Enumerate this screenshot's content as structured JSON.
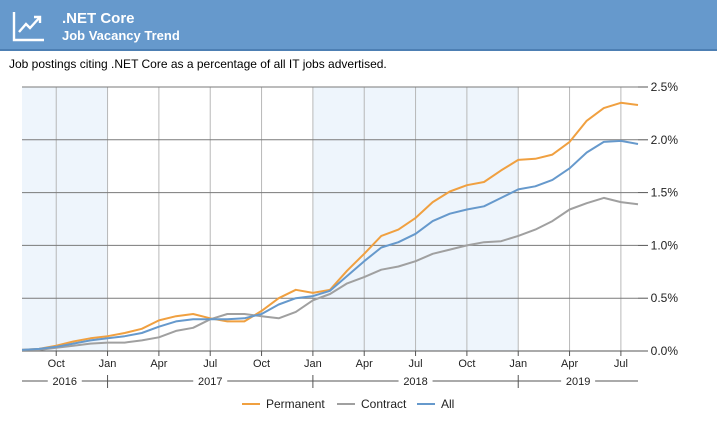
{
  "header": {
    "title": ".NET Core",
    "subtitle": "Job Vacancy Trend",
    "icon": "trend-chart-icon",
    "background_color": "#6699cc"
  },
  "description": "Job postings citing .NET Core as a percentage of all IT jobs advertised.",
  "chart_data": {
    "type": "line",
    "title": "",
    "xlabel": "",
    "ylabel": "",
    "x_axis": {
      "start": "2016-08",
      "end": "2019-08",
      "month_ticks": [
        "Oct",
        "Jan",
        "Apr",
        "Jul",
        "Oct",
        "Jan",
        "Apr",
        "Jul",
        "Oct",
        "Jan",
        "Apr",
        "Jul"
      ],
      "month_tick_dates": [
        "2016-10",
        "2017-01",
        "2017-04",
        "2017-07",
        "2017-10",
        "2018-01",
        "2018-04",
        "2018-07",
        "2018-10",
        "2019-01",
        "2019-04",
        "2019-07"
      ],
      "year_labels": [
        "2016",
        "2017",
        "2018",
        "2019"
      ]
    },
    "y_axis": {
      "ylim": [
        0,
        2.5
      ],
      "ticks": [
        0,
        0.5,
        1.0,
        1.5,
        2.0,
        2.5
      ],
      "tick_labels": [
        "0.0%",
        "0.5%",
        "1.0%",
        "1.5%",
        "2.0%",
        "2.5%"
      ],
      "position": "right"
    },
    "grid": true,
    "shaded_years": [
      "2016",
      "2018"
    ],
    "shade_color": "#eef5fc",
    "legend_position": "bottom-center",
    "x": [
      "2016-08",
      "2016-09",
      "2016-10",
      "2016-11",
      "2016-12",
      "2017-01",
      "2017-02",
      "2017-03",
      "2017-04",
      "2017-05",
      "2017-06",
      "2017-07",
      "2017-08",
      "2017-09",
      "2017-10",
      "2017-11",
      "2017-12",
      "2018-01",
      "2018-02",
      "2018-03",
      "2018-04",
      "2018-05",
      "2018-06",
      "2018-07",
      "2018-08",
      "2018-09",
      "2018-10",
      "2018-11",
      "2018-12",
      "2019-01",
      "2019-02",
      "2019-03",
      "2019-04",
      "2019-05",
      "2019-06",
      "2019-07",
      "2019-08"
    ],
    "series": [
      {
        "name": "Permanent",
        "color": "#f0a040",
        "values": [
          0.01,
          0.02,
          0.05,
          0.09,
          0.12,
          0.14,
          0.17,
          0.21,
          0.29,
          0.33,
          0.35,
          0.31,
          0.28,
          0.28,
          0.38,
          0.5,
          0.58,
          0.55,
          0.58,
          0.76,
          0.92,
          1.09,
          1.15,
          1.26,
          1.41,
          1.51,
          1.57,
          1.6,
          1.71,
          1.81,
          1.82,
          1.86,
          1.98,
          2.18,
          2.3,
          2.35,
          2.33
        ]
      },
      {
        "name": "Contract",
        "color": "#a0a0a0",
        "values": [
          0.01,
          0.01,
          0.03,
          0.05,
          0.07,
          0.08,
          0.08,
          0.1,
          0.13,
          0.19,
          0.22,
          0.3,
          0.35,
          0.35,
          0.33,
          0.31,
          0.37,
          0.48,
          0.54,
          0.64,
          0.7,
          0.77,
          0.8,
          0.85,
          0.92,
          0.96,
          1.0,
          1.03,
          1.04,
          1.09,
          1.15,
          1.23,
          1.34,
          1.4,
          1.45,
          1.41,
          1.39
        ]
      },
      {
        "name": "All",
        "color": "#6699cc",
        "values": [
          0.01,
          0.02,
          0.04,
          0.07,
          0.1,
          0.12,
          0.14,
          0.17,
          0.23,
          0.28,
          0.3,
          0.3,
          0.3,
          0.31,
          0.35,
          0.44,
          0.5,
          0.52,
          0.57,
          0.71,
          0.85,
          0.98,
          1.03,
          1.11,
          1.23,
          1.3,
          1.34,
          1.37,
          1.45,
          1.53,
          1.56,
          1.62,
          1.73,
          1.88,
          1.98,
          1.99,
          1.96
        ]
      }
    ]
  }
}
